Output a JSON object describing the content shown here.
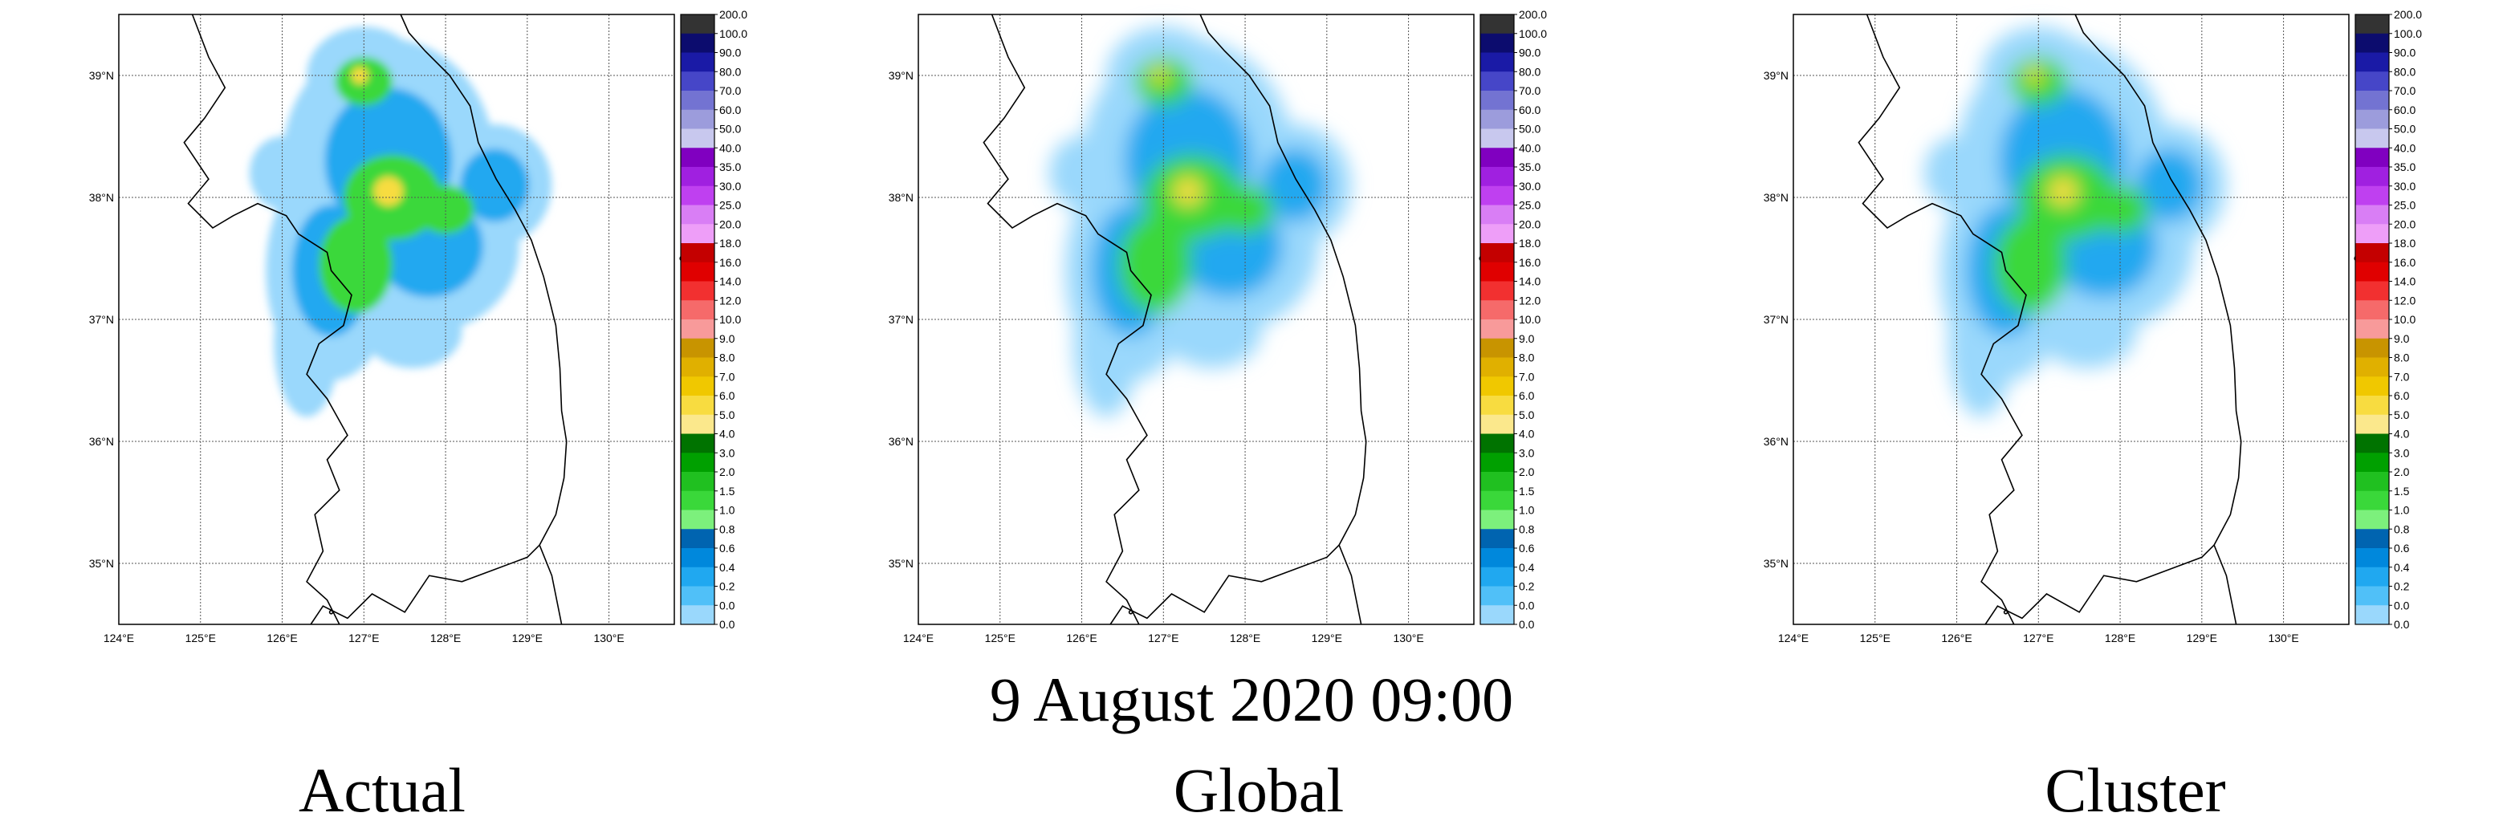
{
  "caption": "9 August 2020 09:00",
  "panels": [
    {
      "label": "Actual"
    },
    {
      "label": "Global"
    },
    {
      "label": "Cluster"
    }
  ],
  "axes": {
    "lon_ticks": [
      "124°E",
      "125°E",
      "126°E",
      "127°E",
      "128°E",
      "129°E",
      "130°E"
    ],
    "lat_ticks": [
      "39°N",
      "38°N",
      "37°N",
      "36°N",
      "35°N"
    ],
    "lon_range": [
      124,
      130.8
    ],
    "lat_range": [
      34.5,
      39.5
    ]
  },
  "colorbar": {
    "levels": [
      "200.0",
      "100.0",
      "90.0",
      "80.0",
      "70.0",
      "60.0",
      "50.0",
      "40.0",
      "35.0",
      "30.0",
      "25.0",
      "20.0",
      "18.0",
      "16.0",
      "14.0",
      "12.0",
      "10.0",
      "9.0",
      "8.0",
      "7.0",
      "6.0",
      "5.0",
      "4.0",
      "3.0",
      "2.0",
      "1.5",
      "1.0",
      "0.8",
      "0.6",
      "0.4",
      "0.2",
      "0.0",
      "0.0"
    ],
    "colors": [
      "#333333",
      "#0c0c6e",
      "#1a1aa6",
      "#4646c8",
      "#7373d2",
      "#9c9cdc",
      "#c8c8ee",
      "#8000c0",
      "#a020e0",
      "#bf40f0",
      "#d97ef5",
      "#ee9ef8",
      "#c40000",
      "#e00000",
      "#f23030",
      "#f66a6a",
      "#f89a9a",
      "#c89400",
      "#e0b000",
      "#f0c800",
      "#f8dc40",
      "#fbe88c",
      "#007300",
      "#00a000",
      "#20c020",
      "#3ad83a",
      "#7cf07c",
      "#0064b0",
      "#0088dc",
      "#20a8f0",
      "#50c0f8",
      "#9ad8fc"
    ]
  },
  "coastline_color": "#000000",
  "grid_color": "#555555"
}
